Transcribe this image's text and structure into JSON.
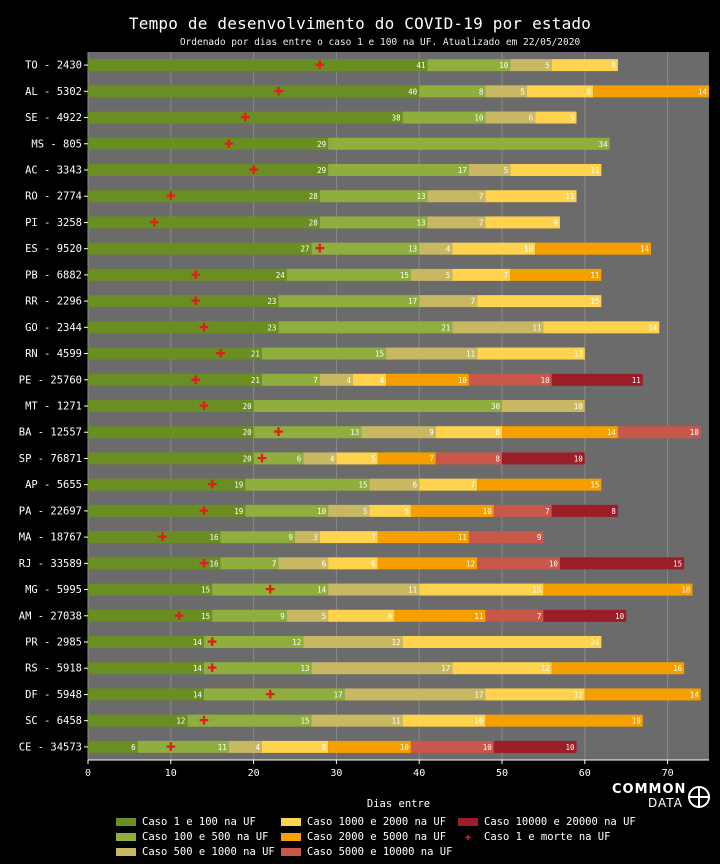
{
  "chart_data": {
    "type": "bar",
    "orientation": "horizontal-stacked",
    "title": "Tempo de desenvolvimento do COVID-19 por estado",
    "subtitle": "Ordenado por dias entre o caso 1 e 100 na UF. Atualizado em 22/05/2020",
    "xlabel": "Dias entre",
    "xlim": [
      0,
      75
    ],
    "xticks": [
      0,
      10,
      20,
      30,
      40,
      50,
      60,
      70
    ],
    "grid": true,
    "series": [
      {
        "name": "Caso 1 e 100 na UF",
        "color": "#6b8e23"
      },
      {
        "name": "Caso 100 e 500 na UF",
        "color": "#8fae3e"
      },
      {
        "name": "Caso 500 e 1000 na UF",
        "color": "#c8b862"
      },
      {
        "name": "Caso 1000 e 2000 na UF",
        "color": "#ffd34e"
      },
      {
        "name": "Caso 2000 e 5000 na UF",
        "color": "#f5a000"
      },
      {
        "name": "Caso 5000 e 10000 na UF",
        "color": "#c9574a"
      },
      {
        "name": "Caso 10000 e 20000 na UF",
        "color": "#9b1d28"
      }
    ],
    "marker": {
      "name": "Caso 1 e morte na UF",
      "color": "#e41a1c"
    },
    "rows": [
      {
        "label": "TO - 2430",
        "values": [
          41,
          10,
          5,
          8
        ],
        "death": 28
      },
      {
        "label": "AL - 5302",
        "values": [
          40,
          8,
          5,
          8,
          14
        ],
        "death": 23
      },
      {
        "label": "SE - 4922",
        "values": [
          38,
          10,
          6,
          5
        ],
        "death": 19
      },
      {
        "label": "MS - 805",
        "values": [
          29,
          34
        ],
        "death": 17
      },
      {
        "label": "AC - 3343",
        "values": [
          29,
          17,
          5,
          11
        ],
        "death": 20
      },
      {
        "label": "RO - 2774",
        "values": [
          28,
          13,
          7,
          11
        ],
        "death": 10
      },
      {
        "label": "PI - 3258",
        "values": [
          28,
          13,
          7,
          9
        ],
        "death": 8
      },
      {
        "label": "ES - 9520",
        "values": [
          27,
          13,
          4,
          10,
          14
        ],
        "death": 28
      },
      {
        "label": "PB - 6882",
        "values": [
          24,
          15,
          5,
          7,
          11
        ],
        "death": 13
      },
      {
        "label": "RR - 2296",
        "values": [
          23,
          17,
          7,
          15
        ],
        "death": 13
      },
      {
        "label": "GO - 2344",
        "values": [
          23,
          21,
          11,
          14
        ],
        "death": 14
      },
      {
        "label": "RN - 4599",
        "values": [
          21,
          15,
          11,
          13
        ],
        "death": 16
      },
      {
        "label": "PE - 25760",
        "values": [
          21,
          7,
          4,
          4,
          10,
          10,
          11
        ],
        "death": 13
      },
      {
        "label": "MT - 1271",
        "values": [
          20,
          30,
          10
        ],
        "death": 14
      },
      {
        "label": "BA - 12557",
        "values": [
          20,
          13,
          9,
          8,
          14,
          10
        ],
        "death": 23
      },
      {
        "label": "SP - 76871",
        "values": [
          20,
          6,
          4,
          5,
          7,
          8,
          10
        ],
        "death": 21
      },
      {
        "label": "AP - 5655",
        "values": [
          19,
          15,
          6,
          7,
          15
        ],
        "death": 15
      },
      {
        "label": "PA - 22697",
        "values": [
          19,
          10,
          5,
          5,
          10,
          7,
          8
        ],
        "death": 14
      },
      {
        "label": "MA - 18767",
        "values": [
          16,
          9,
          3,
          7,
          11,
          9
        ],
        "death": 9
      },
      {
        "label": "RJ - 33589",
        "values": [
          16,
          7,
          6,
          6,
          12,
          10,
          15
        ],
        "death": 14
      },
      {
        "label": "MG - 5995",
        "values": [
          15,
          14,
          11,
          15,
          18
        ],
        "death": 22
      },
      {
        "label": "AM - 27038",
        "values": [
          15,
          9,
          5,
          8,
          11,
          7,
          10
        ],
        "death": 11
      },
      {
        "label": "PR - 2985",
        "values": [
          14,
          12,
          12,
          24
        ],
        "death": 15
      },
      {
        "label": "RS - 5918",
        "values": [
          14,
          13,
          17,
          12,
          16
        ],
        "death": 15
      },
      {
        "label": "DF - 5948",
        "values": [
          14,
          17,
          17,
          12,
          14
        ],
        "death": 22
      },
      {
        "label": "SC - 6458",
        "values": [
          12,
          15,
          11,
          10,
          19
        ],
        "death": 14
      },
      {
        "label": "CE - 34573",
        "values": [
          6,
          11,
          4,
          8,
          10,
          10,
          10
        ],
        "death": 10
      }
    ]
  },
  "logo": {
    "line1": "COMMON",
    "line2": "DATA"
  }
}
